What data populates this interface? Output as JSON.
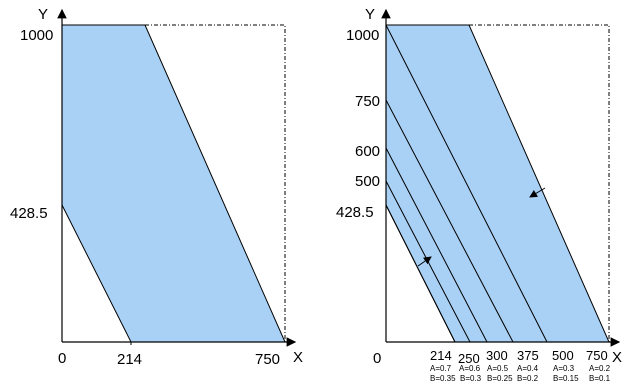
{
  "left_plot": {
    "y_axis_label": "Y",
    "x_axis_label": "X",
    "origin_label": "0",
    "y_ticks": [
      "1000",
      "428.5"
    ],
    "x_ticks": [
      "214",
      "750"
    ]
  },
  "right_plot": {
    "y_axis_label": "Y",
    "x_axis_label": "X",
    "origin_label": "0",
    "y_ticks": [
      "1000",
      "750",
      "600",
      "500",
      "428.5"
    ],
    "x_ticks": [
      "214",
      "250",
      "300",
      "375",
      "500",
      "750"
    ],
    "a_labels": [
      "A=0.7",
      "A=0.6",
      "A=0.5",
      "A=0.4",
      "A=0.3",
      "A=0.2"
    ],
    "b_labels": [
      "B=0.35",
      "B=0.3",
      "B=0.25",
      "B=0.2",
      "B=0.15",
      "B=0.1"
    ]
  },
  "colors": {
    "region_fill": "#a9d1f5",
    "stroke": "#000000"
  }
}
